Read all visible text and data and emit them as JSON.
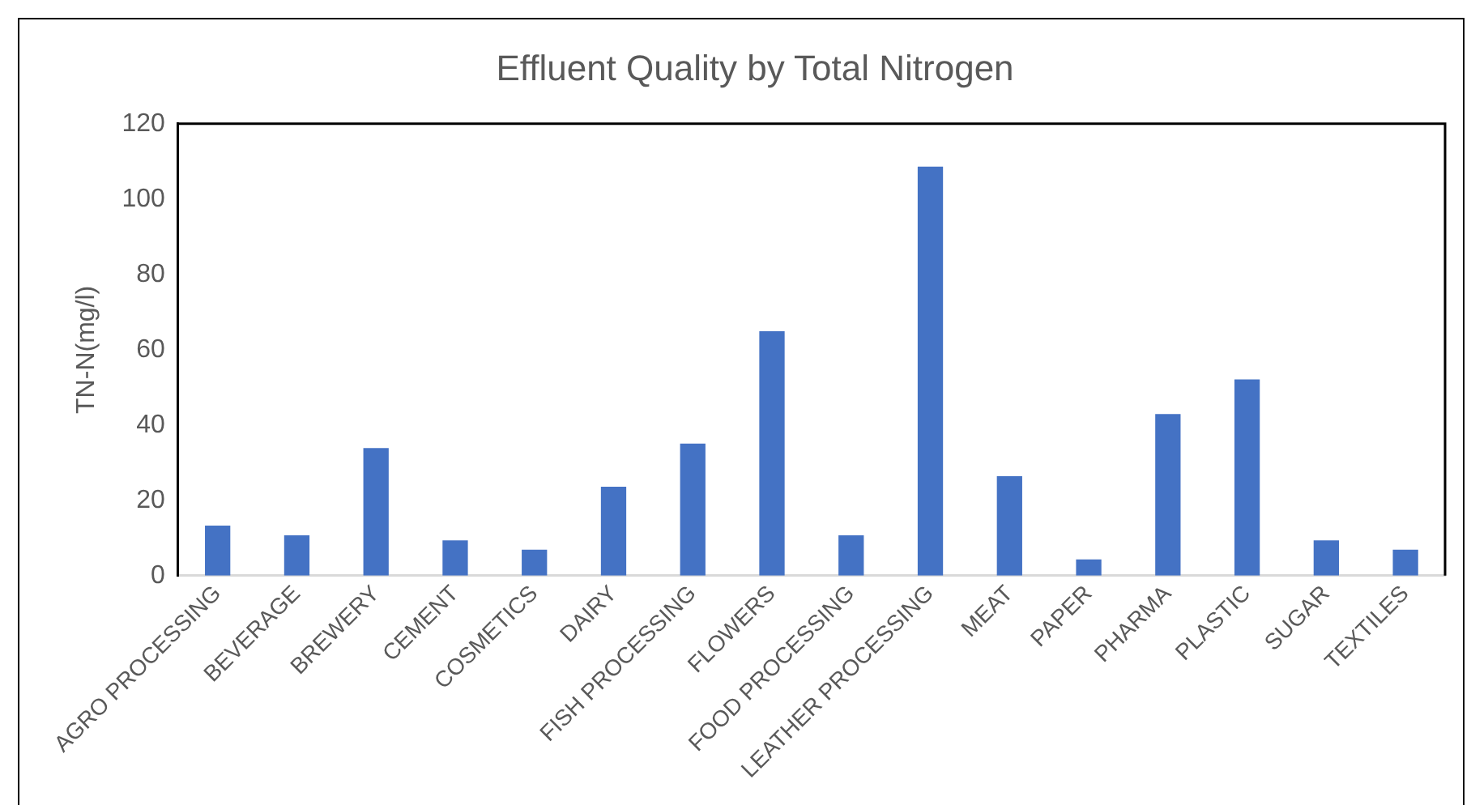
{
  "chart_data": {
    "type": "bar",
    "title": "Effluent Quality by Total Nitrogen",
    "ylabel": "TN-N(mg/l)",
    "categories": [
      "AGRO PROCESSING",
      "BEVERAGE",
      "BREWERY",
      "CEMENT",
      "COSMETICS",
      "DAIRY",
      "FISH PROCESSING",
      "FLOWERS",
      "FOOD PROCESSING",
      "LEATHER PROCESSING",
      "MEAT",
      "PAPER",
      "PHARMA",
      "PLASTIC",
      "SUGAR",
      "TEXTILES"
    ],
    "values": [
      13.3,
      10.7,
      33.9,
      9.4,
      6.9,
      23.6,
      35.1,
      64.9,
      10.7,
      108.6,
      26.4,
      4.3,
      42.9,
      52.1,
      9.4,
      6.9
    ],
    "color": "#4472c4",
    "ylim": [
      0,
      120
    ],
    "yticks": [
      0,
      20,
      40,
      60,
      80,
      100,
      120
    ],
    "grid": false,
    "legend": false
  }
}
